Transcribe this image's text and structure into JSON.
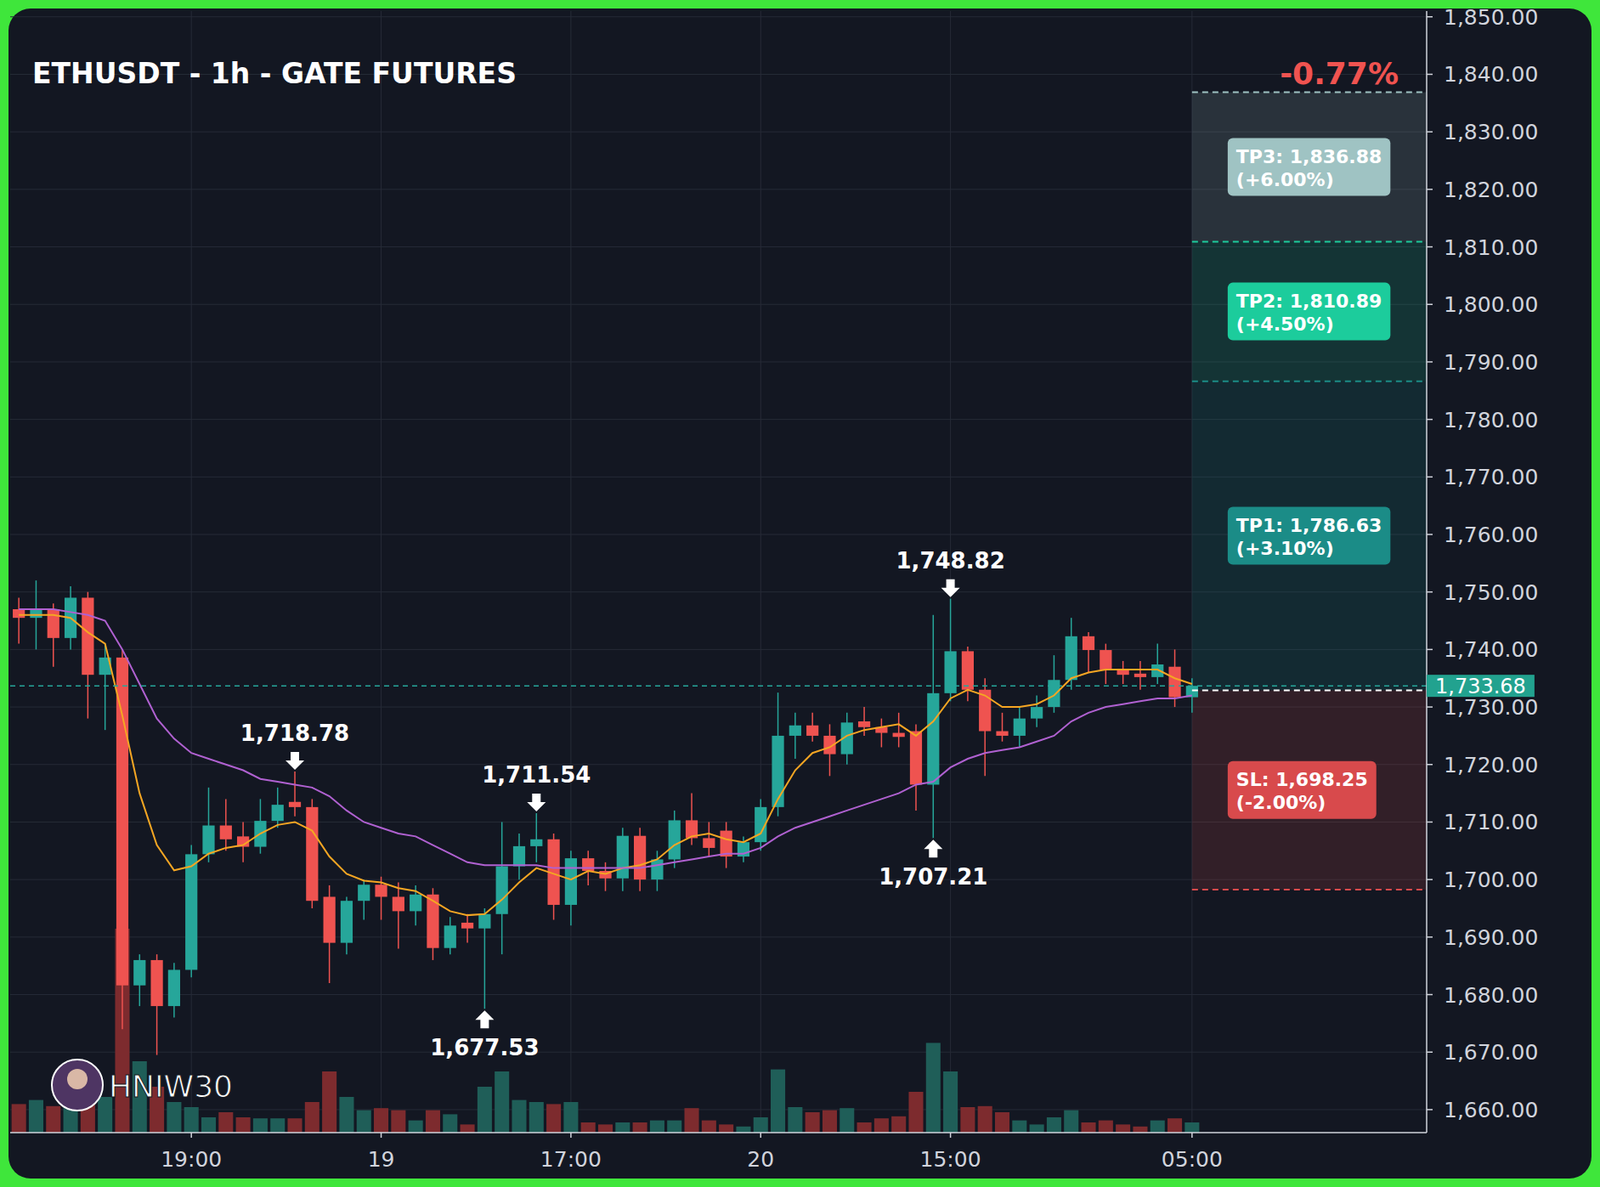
{
  "chart_data": {
    "type": "candlestick",
    "title": "ETHUSDT - 1h - GATE FUTURES",
    "change_label": "-0.77%",
    "watermark": "HNIW30",
    "categories": [
      null,
      null,
      null,
      null,
      null,
      null,
      null,
      null,
      null,
      null,
      "19:00",
      null,
      null,
      null,
      null,
      null,
      null,
      null,
      null,
      null,
      null,
      "19",
      null,
      null,
      null,
      null,
      null,
      null,
      null,
      null,
      null,
      null,
      "17:00",
      null,
      null,
      null,
      null,
      null,
      null,
      null,
      null,
      null,
      null,
      "20",
      null,
      null,
      null,
      null,
      null,
      null,
      null,
      null,
      null,
      null,
      "15:00",
      null,
      null,
      null,
      null,
      null,
      null,
      null,
      null,
      null,
      null,
      null,
      null,
      null,
      "05:00"
    ],
    "open": [
      1747,
      1745.5,
      1747,
      1742,
      1749,
      1735.6,
      1738.6,
      1681.6,
      1686,
      1678,
      1684.3,
      1704.4,
      1709.4,
      1707.5,
      1705.7,
      1710.2,
      1713.5,
      1712.6,
      1697,
      1689,
      1696.3,
      1699.1,
      1697,
      1694.5,
      1697.4,
      1688.1,
      1692.5,
      1691.5,
      1694,
      1702.3,
      1705.8,
      1707,
      1695.6,
      1703.7,
      1701.5,
      1700.2,
      1707.6,
      1700,
      1703.5,
      1710.3,
      1707.2,
      1708.5,
      1704,
      1706.5,
      1712.6,
      1725,
      1726.8,
      1725,
      1721.8,
      1727.5,
      1726.5,
      1725.5,
      1725.8,
      1716.5,
      1732.4,
      1739.7,
      1733,
      1725.8,
      1725,
      1728,
      1730,
      1734.7,
      1742.3,
      1739.9,
      1736.5,
      1735.8,
      1735.2,
      1737,
      1731.7
    ],
    "high": [
      1749,
      1752,
      1748,
      1751,
      1750,
      1741,
      1740,
      1687,
      1687,
      1685.5,
      1706,
      1716,
      1714,
      1710,
      1714,
      1716,
      1718.78,
      1714,
      1699,
      1697,
      1700,
      1700.5,
      1699.5,
      1699,
      1698.5,
      1693.5,
      1694,
      1695,
      1710,
      1708,
      1711.54,
      1708,
      1705,
      1705,
      1703,
      1709,
      1709,
      1705,
      1712,
      1715,
      1710,
      1710,
      1707.5,
      1714,
      1732.5,
      1729,
      1729,
      1727,
      1729,
      1730,
      1728,
      1729,
      1727,
      1746,
      1748.82,
      1740.5,
      1735,
      1729,
      1730,
      1732,
      1739,
      1745.5,
      1743,
      1741,
      1738,
      1738,
      1741,
      1740,
      1735
    ],
    "low": [
      1741,
      1740,
      1737,
      1740,
      1728,
      1726,
      1674,
      1678,
      1669.5,
      1676,
      1683,
      1703,
      1705,
      1703,
      1704.5,
      1709,
      1711,
      1695,
      1682,
      1687,
      1693,
      1693,
      1688,
      1692,
      1686,
      1687,
      1689,
      1677.53,
      1687,
      1700,
      1703,
      1693,
      1692,
      1699,
      1698,
      1698,
      1698,
      1698,
      1702,
      1706,
      1704,
      1702,
      1703,
      1705,
      1711,
      1721,
      1724,
      1718,
      1720,
      1725,
      1723,
      1723,
      1712,
      1707.21,
      1731,
      1731,
      1718,
      1724,
      1723,
      1726.5,
      1729,
      1733,
      1736,
      1734,
      1734,
      1733,
      1734,
      1730,
      1729
    ],
    "close": [
      1745.5,
      1747,
      1742,
      1749,
      1735.6,
      1738.6,
      1681.6,
      1686,
      1678,
      1684.3,
      1704.4,
      1709.4,
      1707,
      1705.7,
      1710.2,
      1713,
      1712.6,
      1696.3,
      1689,
      1696.3,
      1699.1,
      1697,
      1694.5,
      1697.4,
      1688.1,
      1692,
      1691.5,
      1694,
      1702.3,
      1705.8,
      1707,
      1695.6,
      1703.7,
      1701.5,
      1700.2,
      1707.6,
      1700,
      1703.5,
      1710.3,
      1707.2,
      1705.5,
      1704,
      1706.5,
      1712.6,
      1725,
      1726.8,
      1725,
      1721.8,
      1727.3,
      1726.5,
      1725.5,
      1724.8,
      1716.5,
      1732.4,
      1739.7,
      1733,
      1725.8,
      1725,
      1728,
      1730,
      1734.7,
      1742.3,
      1739.9,
      1736.5,
      1735.6,
      1735.2,
      1737.4,
      1731.7,
      1733.68
    ],
    "volume": [
      28,
      32,
      26,
      30,
      40,
      35,
      200,
      70,
      45,
      30,
      25,
      15,
      20,
      15,
      14,
      14,
      14,
      30,
      60,
      35,
      22,
      24,
      22,
      12,
      22,
      18,
      8,
      45,
      60,
      32,
      30,
      28,
      30,
      10,
      8,
      10,
      10,
      12,
      12,
      24,
      12,
      8,
      6,
      15,
      62,
      25,
      20,
      22,
      24,
      10,
      14,
      16,
      40,
      88,
      60,
      25,
      26,
      20,
      12,
      8,
      15,
      22,
      10,
      12,
      8,
      6,
      12,
      14,
      10
    ],
    "volume_ylim": [
      0,
      1100
    ],
    "series": [
      {
        "type": "line",
        "color": "#f5a623",
        "values": [
          1746,
          1746,
          1746,
          1745.5,
          1743,
          1741,
          1728.5,
          1715,
          1706,
          1701.6,
          1702.3,
          1704.5,
          1705.5,
          1706,
          1708,
          1709.5,
          1710,
          1708.5,
          1704,
          1701,
          1699.8,
          1699.5,
          1698.5,
          1698,
          1696.3,
          1694.5,
          1693.8,
          1694,
          1696.5,
          1699.5,
          1702,
          1701,
          1700,
          1701.5,
          1701,
          1702,
          1702.5,
          1703.5,
          1706,
          1707.5,
          1708,
          1707,
          1706.5,
          1708,
          1714,
          1719,
          1722,
          1723,
          1725,
          1726,
          1726.5,
          1727,
          1725,
          1727.5,
          1731.5,
          1733,
          1732,
          1730,
          1730,
          1730.5,
          1732,
          1735,
          1736,
          1736.5,
          1736.5,
          1736.5,
          1736.5,
          1735,
          1734
        ]
      },
      {
        "type": "line",
        "color": "#b061d1",
        "values": [
          1747,
          1747,
          1747,
          1746.5,
          1746,
          1745,
          1740,
          1734,
          1728,
          1724.5,
          1722,
          1721,
          1720,
          1719,
          1717.5,
          1717,
          1716.5,
          1716,
          1714.5,
          1712,
          1710,
          1709,
          1708,
          1707.5,
          1706,
          1704.5,
          1703,
          1702.5,
          1702.5,
          1702.5,
          1702.5,
          1702,
          1702,
          1702,
          1702,
          1702,
          1702,
          1702.5,
          1703,
          1703.5,
          1704,
          1704.5,
          1704.5,
          1705.5,
          1707.5,
          1709,
          1710,
          1711,
          1712,
          1713,
          1714,
          1715,
          1716.5,
          1717,
          1719.5,
          1721,
          1722,
          1722.5,
          1723,
          1724,
          1725,
          1727.5,
          1729,
          1730,
          1730.5,
          1731,
          1731.5,
          1731.5,
          1732
        ]
      }
    ],
    "xlim": [
      -0.5,
      81.6
    ],
    "ylim": [
      1656,
      1851
    ],
    "yticks": [
      {
        "value": 1660,
        "label": "1,660.00"
      },
      {
        "value": 1670,
        "label": "1,670.00"
      },
      {
        "value": 1680,
        "label": "1,680.00"
      },
      {
        "value": 1690,
        "label": "1,690.00"
      },
      {
        "value": 1700,
        "label": "1,700.00"
      },
      {
        "value": 1710,
        "label": "1,710.00"
      },
      {
        "value": 1720,
        "label": "1,720.00"
      },
      {
        "value": 1730,
        "label": "1,730.00"
      },
      {
        "value": 1740,
        "label": "1,740.00"
      },
      {
        "value": 1750,
        "label": "1,750.00"
      },
      {
        "value": 1760,
        "label": "1,760.00"
      },
      {
        "value": 1770,
        "label": "1,770.00"
      },
      {
        "value": 1780,
        "label": "1,780.00"
      },
      {
        "value": 1790,
        "label": "1,790.00"
      },
      {
        "value": 1800,
        "label": "1,800.00"
      },
      {
        "value": 1810,
        "label": "1,810.00"
      },
      {
        "value": 1820,
        "label": "1,820.00"
      },
      {
        "value": 1830,
        "label": "1,830.00"
      },
      {
        "value": 1840,
        "label": "1,840.00"
      },
      {
        "value": 1850,
        "label": "1,850.00"
      }
    ],
    "grid": true,
    "current_price": {
      "value": 1733.68,
      "label": "1,733.68"
    },
    "entry": 1732.91,
    "levels": [
      {
        "label": "TP3: 1,836.88",
        "sublabel": "(+6.00%)",
        "value": 1836.88,
        "color": "#9fc3c3"
      },
      {
        "label": "TP2: 1,810.89",
        "sublabel": "(+4.50%)",
        "value": 1810.89,
        "color": "#1ccc9c"
      },
      {
        "label": "TP1: 1,786.63",
        "sublabel": "(+3.10%)",
        "value": 1786.63,
        "color": "#1b8c87"
      },
      {
        "label": "SL: 1,698.25",
        "sublabel": "(-2.00%)",
        "value": 1698.25,
        "color": "#d84a4c"
      }
    ],
    "high_labels": [
      {
        "index": 16,
        "value": 1718.78,
        "label": "1,718.78"
      },
      {
        "index": 30,
        "value": 1711.54,
        "label": "1,711.54"
      },
      {
        "index": 54,
        "value": 1748.82,
        "label": "1,748.82"
      }
    ],
    "low_labels": [
      {
        "index": 27,
        "value": 1677.53,
        "label": "1,677.53"
      },
      {
        "index": 53,
        "value": 1707.21,
        "label": "1,707.21"
      }
    ]
  }
}
